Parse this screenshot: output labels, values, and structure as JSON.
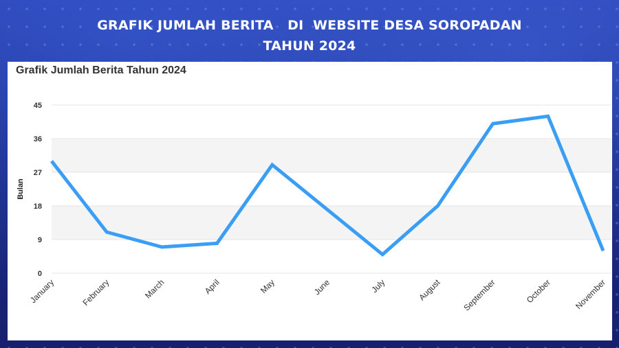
{
  "banner": {
    "line1": "GRAFIK JUMLAH BERITA   DI  WEBSITE DESA SOROPADAN",
    "line2": "TAHUN 2024"
  },
  "chart_data": {
    "type": "line",
    "title": "Grafik Jumlah Berita Tahun 2024",
    "xlabel": "",
    "ylabel": "Bulan",
    "categories": [
      "January",
      "February",
      "March",
      "April",
      "May",
      "June",
      "July",
      "August",
      "September",
      "October",
      "November"
    ],
    "series": [
      {
        "values": [
          30,
          11,
          7,
          8,
          29,
          17,
          5,
          18,
          40,
          42,
          6
        ],
        "color": "#3a9ef5"
      }
    ],
    "ylim": [
      0,
      45
    ],
    "yticks": [
      0,
      9,
      18,
      27,
      36,
      45
    ],
    "grid": true
  }
}
